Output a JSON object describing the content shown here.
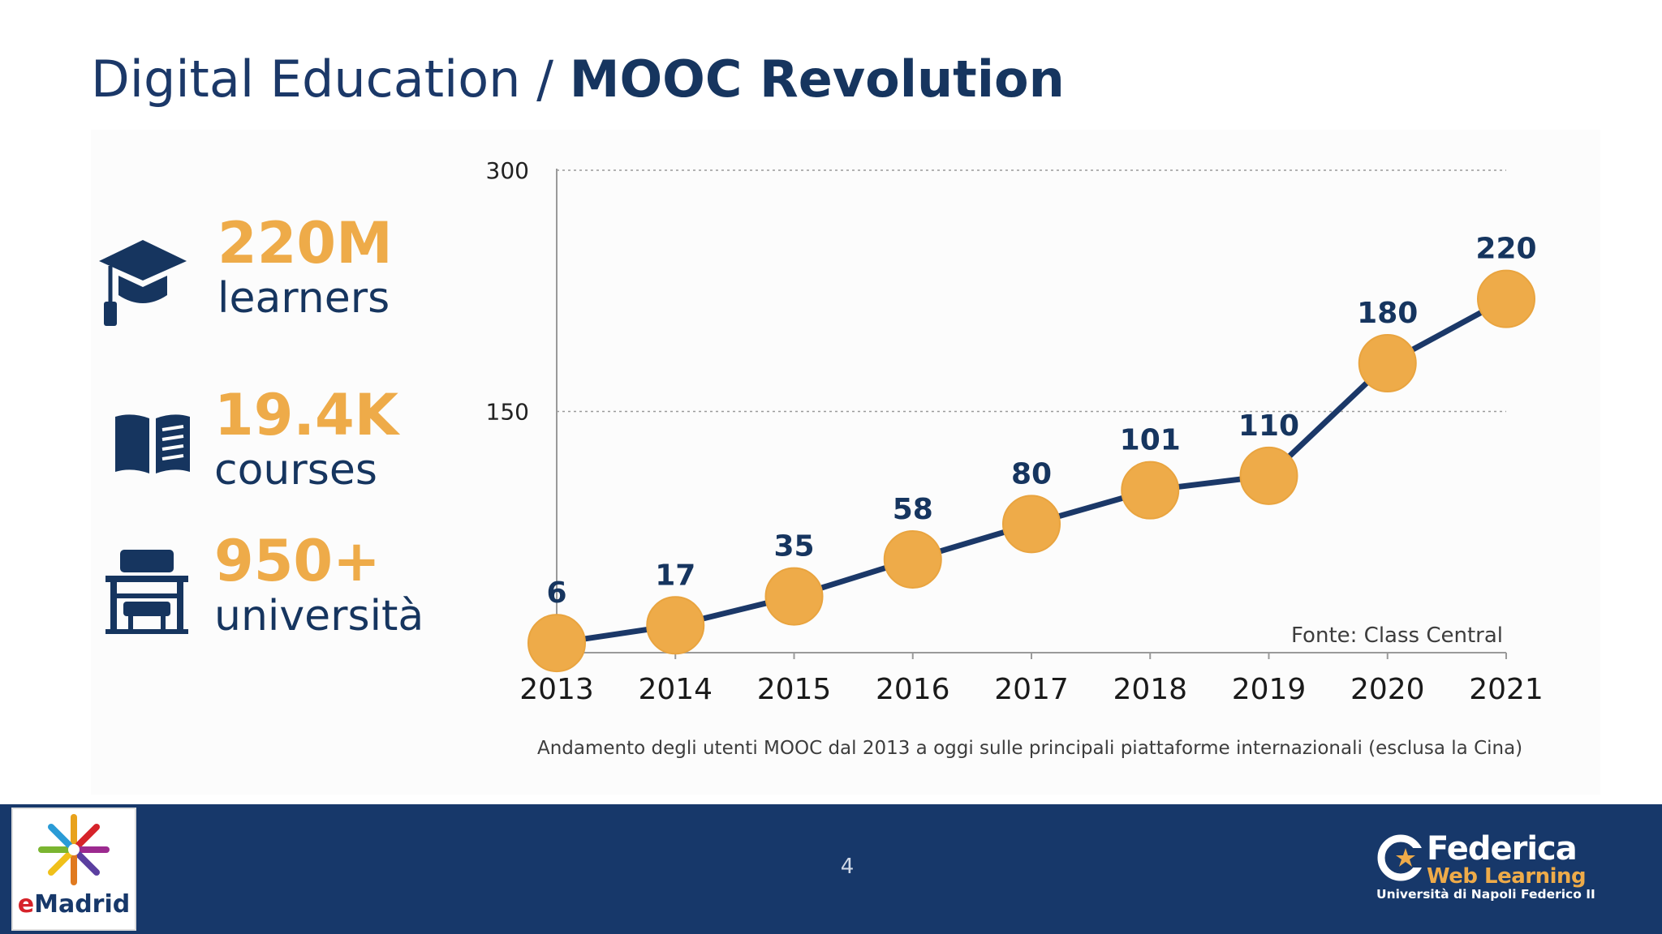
{
  "title": {
    "light": "Digital Education / ",
    "bold": "MOOC Revolution"
  },
  "stats": [
    {
      "value": "220M",
      "label": "learners",
      "icon": "graduation-cap-icon"
    },
    {
      "value": "19.4K",
      "label": "courses",
      "icon": "open-book-icon"
    },
    {
      "value": "950+",
      "label": "università",
      "icon": "school-desk-icon"
    }
  ],
  "chart_data": {
    "type": "line",
    "x": [
      "2013",
      "2014",
      "2015",
      "2016",
      "2017",
      "2018",
      "2019",
      "2020",
      "2021"
    ],
    "values": [
      6,
      17,
      35,
      58,
      80,
      101,
      110,
      180,
      220
    ],
    "data_labels": [
      "6",
      "17",
      "35",
      "58",
      "80",
      "101",
      "110",
      "180",
      "220"
    ],
    "y_ticks": [
      "300",
      "150"
    ],
    "ylim": [
      0,
      300
    ],
    "grid": true,
    "annotation": "Fonte: Class Central",
    "line_color": "#1b3868",
    "marker_color": "#eeab49",
    "xlabel": "",
    "ylabel": ""
  },
  "caption": "Andamento degli utenti MOOC dal 2013 a oggi sulle principali piattaforme internazionali (esclusa la Cina)",
  "footer": {
    "page_number": "4",
    "left_logo": {
      "prefix": "e",
      "rest": "Madrid"
    },
    "right_logo": {
      "name": "Federica",
      "subtitle": "Web Learning",
      "university": "Università di Napoli Federico II"
    }
  },
  "colors": {
    "navy": "#16355f",
    "accent": "#eeab49",
    "footer": "#17386a"
  }
}
